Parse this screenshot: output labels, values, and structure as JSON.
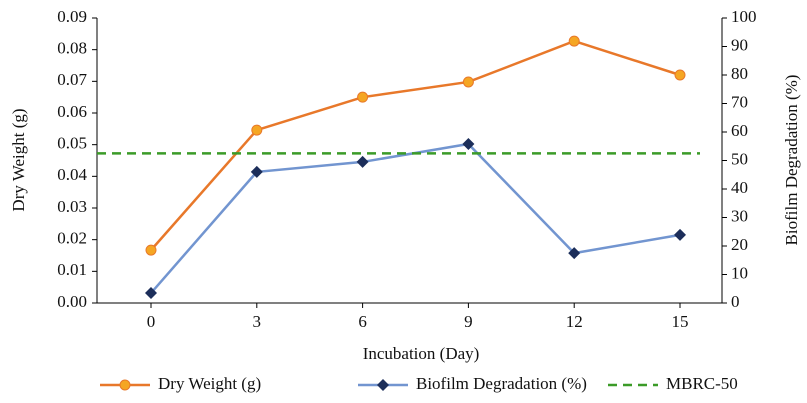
{
  "chart_data": {
    "type": "line",
    "x_label": "Incubation (Day)",
    "y_label": "Dry Weight (g)",
    "y2_label": "Biofilm Degradation (%)",
    "categories": [
      "0",
      "3",
      "6",
      "9",
      "12",
      "15"
    ],
    "series": [
      {
        "name": "Dry Weight (g)",
        "color": "#e8782a",
        "marker": "circle",
        "values": [
          0.0167,
          0.0546,
          0.065,
          0.0698,
          0.0827,
          0.072
        ]
      },
      {
        "name": "Biofilm Degradation (%)",
        "color": "#7295d0",
        "marker": "diamond",
        "axis": "y2",
        "values": [
          3.5,
          46,
          49.5,
          55.8,
          17.5,
          23.9
        ]
      },
      {
        "name": "MBRC-50",
        "color": "#3b9b28",
        "dashed": true,
        "axis": "y2",
        "values": [
          52.5,
          52.5,
          52.5,
          52.5,
          52.5,
          52.5
        ]
      }
    ],
    "ylim": [
      0,
      0.09
    ],
    "yticks": [
      {
        "value": 0,
        "label": "0.00"
      },
      0.01,
      0.02,
      0.03,
      0.04,
      0.05,
      0.06,
      0.07,
      0.08,
      0.09
    ],
    "y2lim": [
      0,
      100
    ],
    "y2ticks": [
      0,
      10,
      20,
      30,
      40,
      50,
      60,
      70,
      80,
      90,
      100
    ],
    "legend": "bottom"
  }
}
